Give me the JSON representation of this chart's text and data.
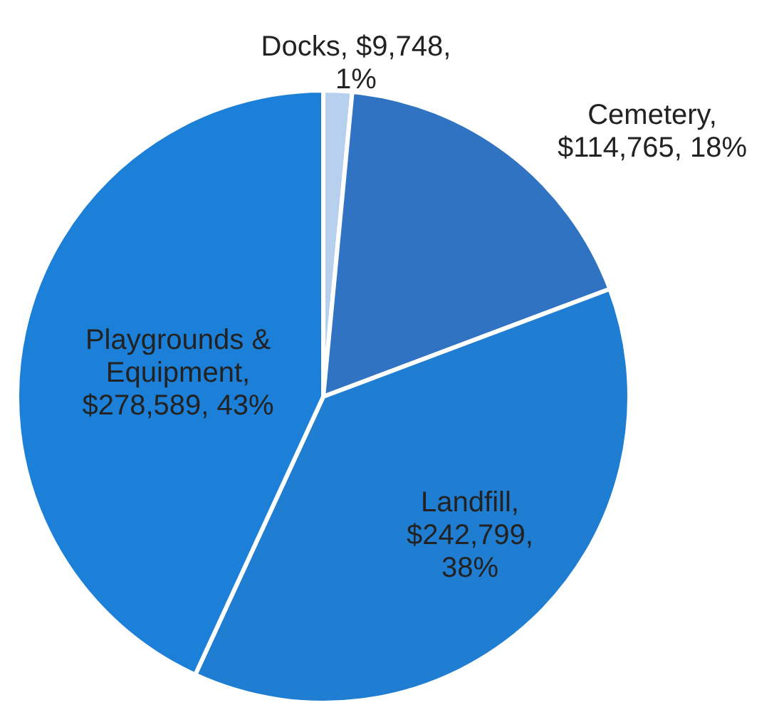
{
  "chart_data": {
    "type": "pie",
    "categories": [
      "Docks",
      "Cemetery",
      "Landfill",
      "Playgrounds & Equipment"
    ],
    "values": [
      9748,
      114765,
      242799,
      278589
    ],
    "value_labels": [
      ", $9,748, 1%",
      ", $114,765, 18%",
      ", $242,799, 38%",
      ", $278,589, 43%"
    ],
    "colors": [
      "#b7d0ee",
      "#2f73c2",
      "#1f7ed2",
      "#1c80d8"
    ],
    "legend": false
  }
}
